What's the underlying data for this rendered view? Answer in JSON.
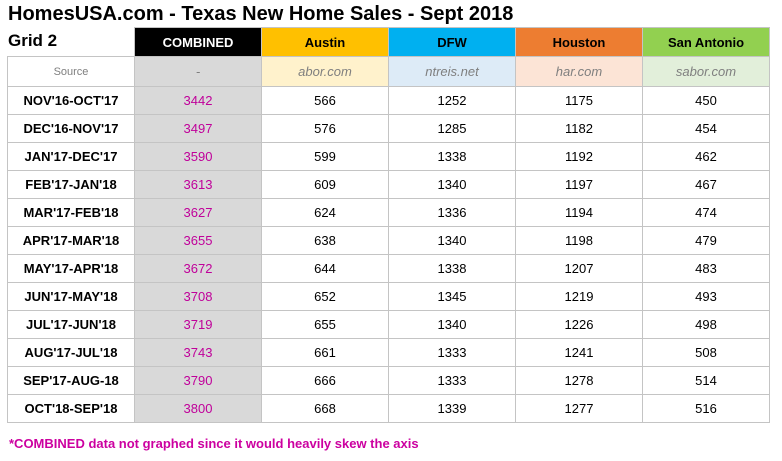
{
  "title": "HomesUSA.com - Texas New Home Sales - Sept 2018",
  "grid_label": "Grid 2",
  "headers": [
    "COMBINED",
    "Austin",
    "DFW",
    "Houston",
    "San Antonio"
  ],
  "source": {
    "label": "Source",
    "values": [
      "-",
      "abor.com",
      "ntreis.net",
      "har.com",
      "sabor.com"
    ]
  },
  "rows": [
    {
      "period": "NOV'16-OCT'17",
      "combined": "3442",
      "austin": "566",
      "dfw": "1252",
      "houston": "1175",
      "san_antonio": "450"
    },
    {
      "period": "DEC'16-NOV'17",
      "combined": "3497",
      "austin": "576",
      "dfw": "1285",
      "houston": "1182",
      "san_antonio": "454"
    },
    {
      "period": "JAN'17-DEC'17",
      "combined": "3590",
      "austin": "599",
      "dfw": "1338",
      "houston": "1192",
      "san_antonio": "462"
    },
    {
      "period": "FEB'17-JAN'18",
      "combined": "3613",
      "austin": "609",
      "dfw": "1340",
      "houston": "1197",
      "san_antonio": "467"
    },
    {
      "period": "MAR'17-FEB'18",
      "combined": "3627",
      "austin": "624",
      "dfw": "1336",
      "houston": "1194",
      "san_antonio": "474"
    },
    {
      "period": "APR'17-MAR'18",
      "combined": "3655",
      "austin": "638",
      "dfw": "1340",
      "houston": "1198",
      "san_antonio": "479"
    },
    {
      "period": "MAY'17-APR'18",
      "combined": "3672",
      "austin": "644",
      "dfw": "1338",
      "houston": "1207",
      "san_antonio": "483"
    },
    {
      "period": "JUN'17-MAY'18",
      "combined": "3708",
      "austin": "652",
      "dfw": "1345",
      "houston": "1219",
      "san_antonio": "493"
    },
    {
      "period": "JUL'17-JUN'18",
      "combined": "3719",
      "austin": "655",
      "dfw": "1340",
      "houston": "1226",
      "san_antonio": "498"
    },
    {
      "period": "AUG'17-JUL'18",
      "combined": "3743",
      "austin": "661",
      "dfw": "1333",
      "houston": "1241",
      "san_antonio": "508"
    },
    {
      "period": "SEP'17-AUG-18",
      "combined": "3790",
      "austin": "666",
      "dfw": "1333",
      "houston": "1278",
      "san_antonio": "514"
    },
    {
      "period": "OCT'18-SEP'18",
      "combined": "3800",
      "austin": "668",
      "dfw": "1339",
      "houston": "1277",
      "san_antonio": "516"
    }
  ],
  "footnote": "*COMBINED data not graphed since it would heavily skew the axis",
  "colors": {
    "combined": "#000000",
    "austin": "#ffc000",
    "dfw": "#00b0f0",
    "houston": "#ed7d31",
    "san_antonio": "#92d050",
    "combined_value_text": "#c0009a",
    "footnote_text": "#cc00a0"
  }
}
